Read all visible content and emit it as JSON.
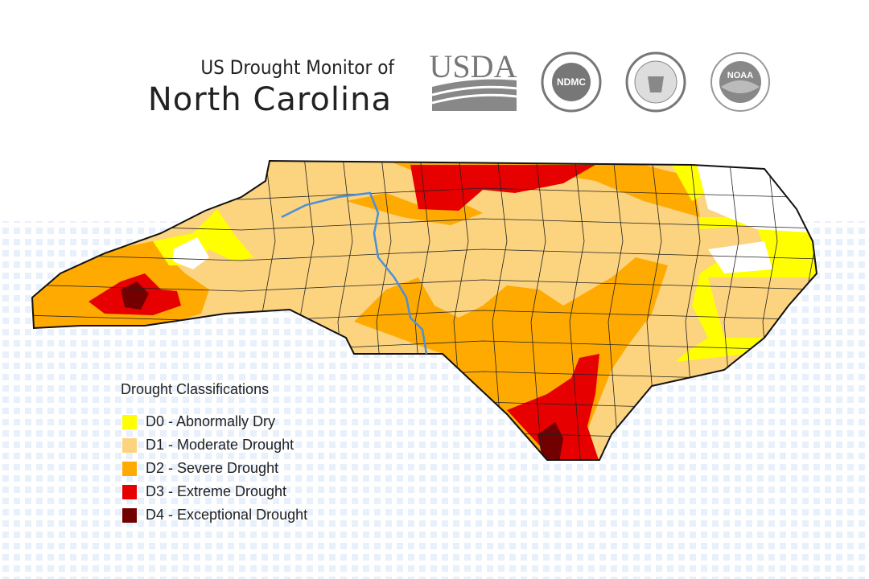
{
  "header": {
    "title_line1": "US Drought Monitor of",
    "title_line2": "North Carolina"
  },
  "logos": {
    "usda": "USDA",
    "ndmc": "NDMC",
    "noaa": "NOAA"
  },
  "legend": {
    "title": "Drought Classifications",
    "items": [
      {
        "label": "D0 - Abnormally Dry",
        "color": "#ffff00"
      },
      {
        "label": "D1 - Moderate Drought",
        "color": "#fcd37f"
      },
      {
        "label": "D2 - Severe Drought",
        "color": "#ffaa00"
      },
      {
        "label": "D3 - Extreme Drought",
        "color": "#e60000"
      },
      {
        "label": "D4 - Exceptional Drought",
        "color": "#730000"
      }
    ]
  }
}
